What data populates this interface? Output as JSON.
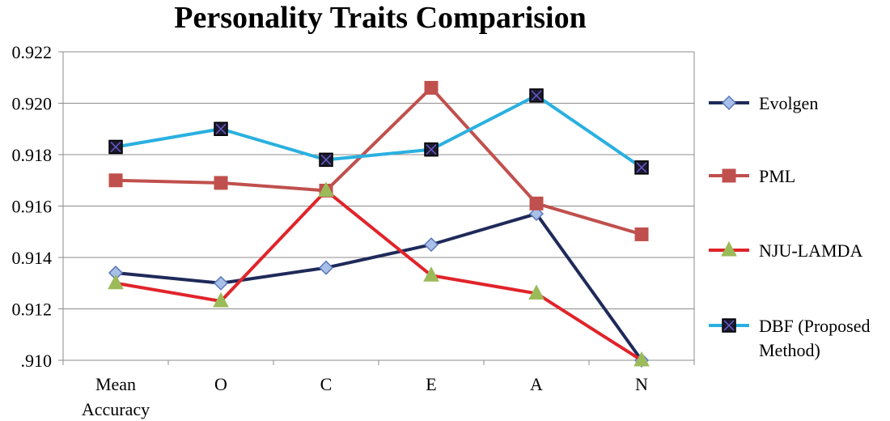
{
  "chart_data": {
    "type": "line",
    "title": "Personality Traits Comparision",
    "xlabel": "",
    "ylabel": "",
    "categories": [
      [
        "Mean",
        "Accuracy"
      ],
      [
        "O"
      ],
      [
        "C"
      ],
      [
        "E"
      ],
      [
        "A"
      ],
      [
        "N"
      ]
    ],
    "ylim": [
      0.91,
      0.922
    ],
    "yticks": [
      0.91,
      0.912,
      0.914,
      0.916,
      0.918,
      0.92,
      0.922
    ],
    "ytick_labels": [
      ".910",
      "0.912",
      "0.914",
      "0.916",
      "0.918",
      "0.920",
      "0.922"
    ],
    "grid": true,
    "legend_position": "right",
    "series": [
      {
        "name": "Evolgen",
        "line_color": "#1f2a5a",
        "marker": "diamond",
        "marker_fill": "#a8c0e8",
        "marker_stroke": "#5a78b8",
        "values": [
          0.9134,
          0.913,
          0.9136,
          0.9145,
          0.9157,
          0.91
        ]
      },
      {
        "name": "PML",
        "line_color": "#c0504d",
        "marker": "square",
        "marker_fill": "#c0504d",
        "marker_stroke": "#c0504d",
        "values": [
          0.917,
          0.9169,
          0.9166,
          0.9206,
          0.9161,
          0.9149
        ]
      },
      {
        "name": "NJU-LAMDA",
        "line_color": "#e0242a",
        "marker": "triangle",
        "marker_fill": "#9bbb59",
        "marker_stroke": "#9bbb59",
        "values": [
          0.913,
          0.9123,
          0.9166,
          0.9133,
          0.9126,
          0.91
        ]
      },
      {
        "name": "DBF (Proposed Method)",
        "legend_lines": [
          "DBF (Proposed",
          "Method)"
        ],
        "line_color": "#2ab0e0",
        "marker": "xsquare",
        "marker_fill": "#1a1a2e",
        "marker_stroke": "#000000",
        "values": [
          0.9183,
          0.919,
          0.9178,
          0.9182,
          0.9203,
          0.9175
        ]
      }
    ]
  }
}
